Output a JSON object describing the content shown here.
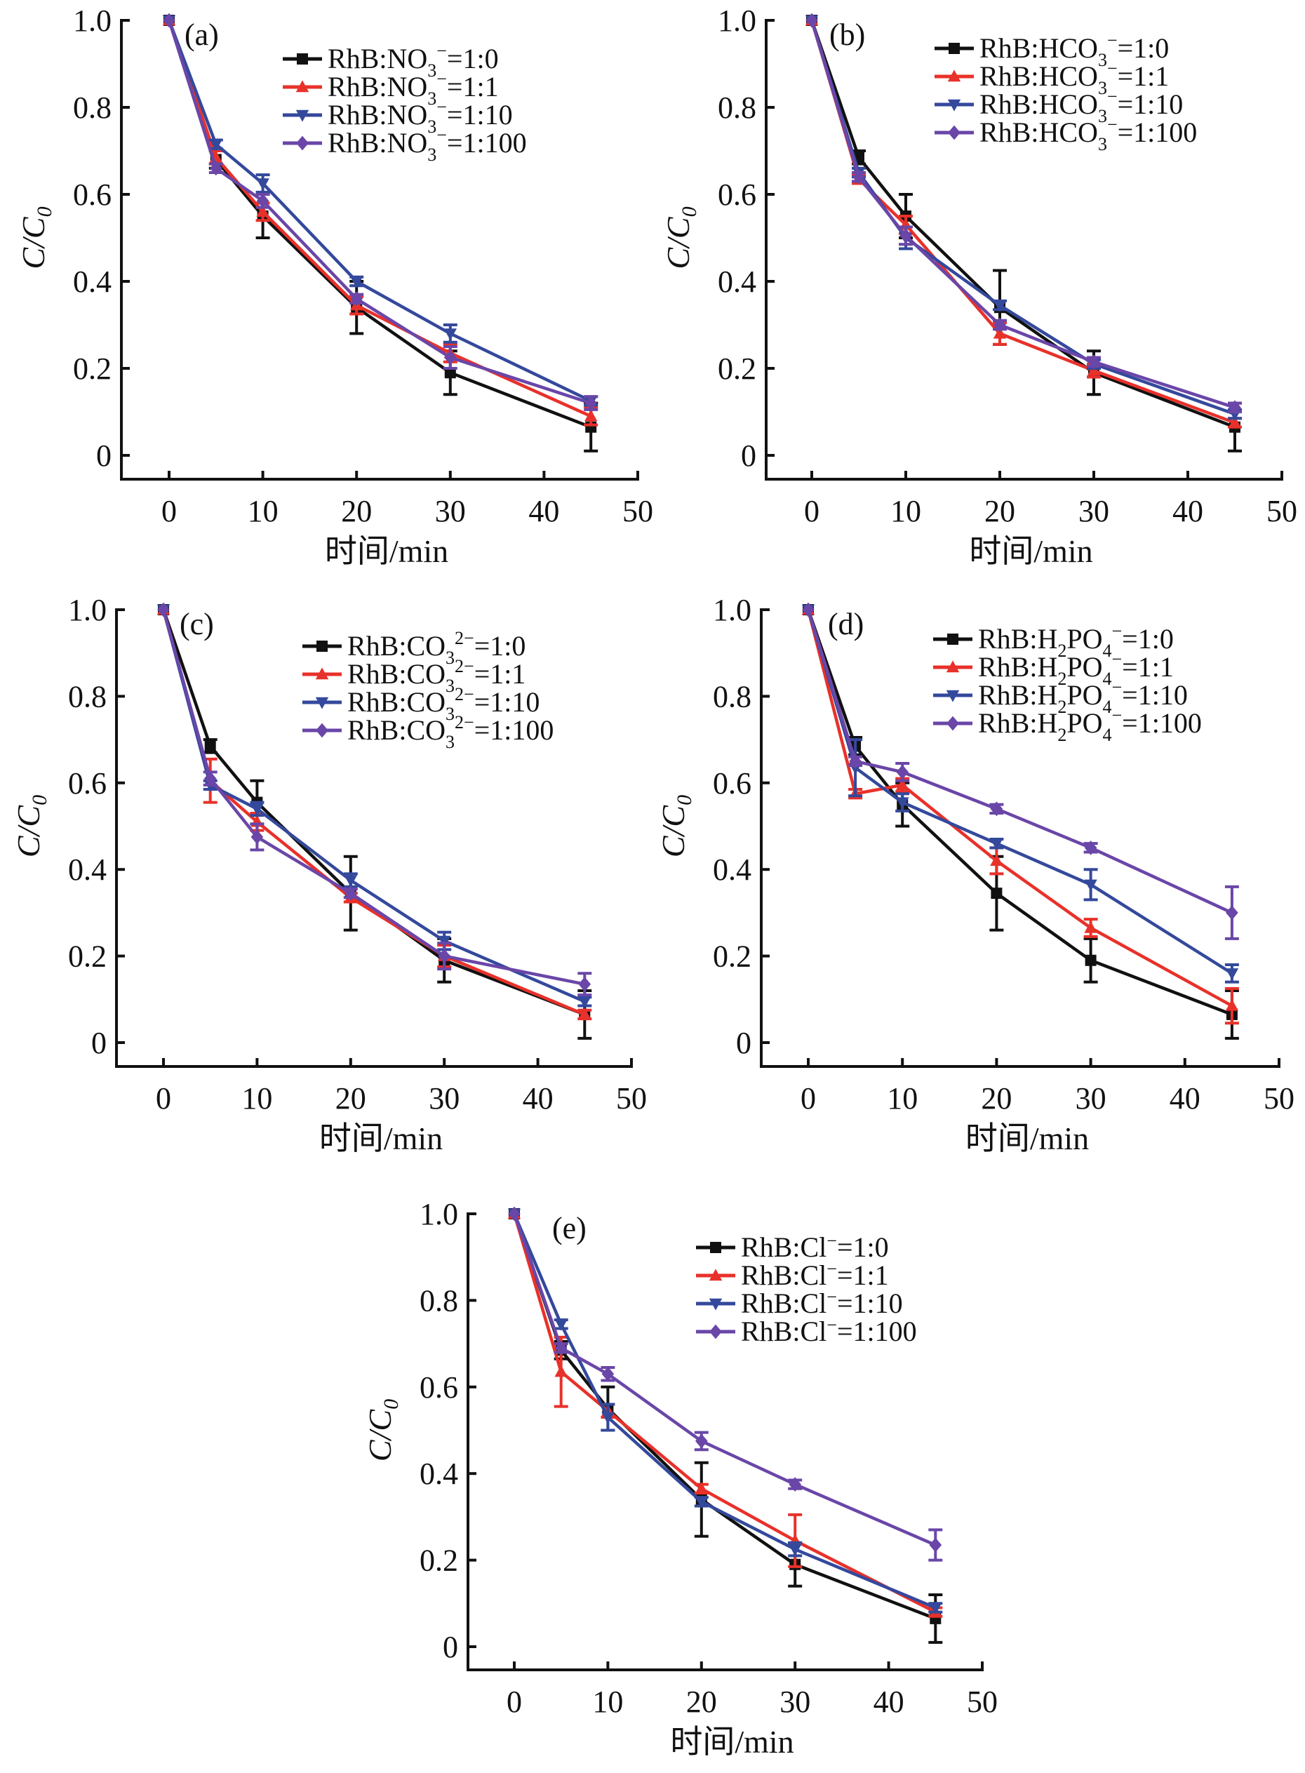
{
  "figure": {
    "series_colors": {
      "black": "#111111",
      "red": "#e8312a",
      "blue": "#34499c",
      "purple": "#6a46a8"
    },
    "marker_shapes": [
      "square",
      "triangle-up",
      "triangle-down",
      "diamond"
    ]
  },
  "chart_data": [
    {
      "id": "a",
      "type": "line",
      "panel_label": "(a)",
      "xlabel": "时间/min",
      "ylabel": "C/C0",
      "ylabel_main": "C/C",
      "ylabel_sub": "0",
      "xlim": [
        -8.5,
        50
      ],
      "ylim": [
        -0.09,
        1.0
      ],
      "xticks": [
        0,
        10,
        20,
        30,
        40,
        50
      ],
      "xtick_labels": [
        "0",
        "10",
        "20",
        "30",
        "40",
        "50"
      ],
      "yticks": [
        0,
        0.2,
        0.4,
        0.6,
        0.8,
        1.0
      ],
      "ytick_labels": [
        "0",
        "0.2",
        "0.4",
        "0.6",
        "0.8",
        "1.0"
      ],
      "legend_position": "top-right",
      "x": [
        0,
        5,
        10,
        20,
        30,
        45
      ],
      "series": [
        {
          "name": "RhB:NO3−=1:0",
          "legend": {
            "pre": "RhB:NO",
            "sub": "3",
            "sup": "−",
            "post": "=1:0"
          },
          "color": "black",
          "marker": "square",
          "values": [
            1.0,
            0.68,
            0.55,
            0.34,
            0.19,
            0.065
          ],
          "errors": [
            0.0,
            0.02,
            0.05,
            0.06,
            0.05,
            0.055
          ]
        },
        {
          "name": "RhB:NO3−=1:1",
          "legend": {
            "pre": "RhB:NO",
            "sub": "3",
            "sup": "−",
            "post": "=1:1"
          },
          "color": "red",
          "marker": "triangle-up",
          "values": [
            1.0,
            0.685,
            0.56,
            0.345,
            0.235,
            0.09
          ],
          "errors": [
            0.0,
            0.015,
            0.02,
            0.02,
            0.02,
            0.02
          ]
        },
        {
          "name": "RhB:NO3−=1:10",
          "legend": {
            "pre": "RhB:NO",
            "sub": "3",
            "sup": "−",
            "post": "=1:10"
          },
          "color": "blue",
          "marker": "triangle-down",
          "values": [
            1.0,
            0.715,
            0.625,
            0.4,
            0.28,
            0.125
          ],
          "errors": [
            0.0,
            0.01,
            0.02,
            0.01,
            0.02,
            0.01
          ]
        },
        {
          "name": "RhB:NO3−=1:100",
          "legend": {
            "pre": "RhB:NO",
            "sub": "3",
            "sup": "−",
            "post": "=1:100"
          },
          "color": "purple",
          "marker": "diamond",
          "values": [
            1.0,
            0.66,
            0.585,
            0.36,
            0.225,
            0.12
          ],
          "errors": [
            0.0,
            0.01,
            0.015,
            0.01,
            0.025,
            0.015
          ]
        }
      ]
    },
    {
      "id": "b",
      "type": "line",
      "panel_label": "(b)",
      "xlabel": "时间/min",
      "ylabel": "C/C0",
      "ylabel_main": "C/C",
      "ylabel_sub": "0",
      "xlim": [
        -8.5,
        50
      ],
      "ylim": [
        -0.09,
        1.0
      ],
      "xticks": [
        0,
        10,
        20,
        30,
        40,
        50
      ],
      "xtick_labels": [
        "0",
        "10",
        "20",
        "30",
        "40",
        "50"
      ],
      "yticks": [
        0,
        0.2,
        0.4,
        0.6,
        0.8,
        1.0
      ],
      "ytick_labels": [
        "0",
        "0.2",
        "0.4",
        "0.6",
        "0.8",
        "1.0"
      ],
      "legend_position": "top-right",
      "x": [
        0,
        5,
        10,
        20,
        30,
        45
      ],
      "series": [
        {
          "name": "RhB:HCO3−=1:0",
          "legend": {
            "pre": "RhB:HCO",
            "sub": "3",
            "sup": "−",
            "post": "=1:0"
          },
          "color": "black",
          "marker": "square",
          "values": [
            1.0,
            0.685,
            0.55,
            0.34,
            0.19,
            0.065
          ],
          "errors": [
            0.0,
            0.015,
            0.05,
            0.085,
            0.05,
            0.055
          ]
        },
        {
          "name": "RhB:HCO3−=1:1",
          "legend": {
            "pre": "RhB:HCO",
            "sub": "3",
            "sup": "−",
            "post": "=1:1"
          },
          "color": "red",
          "marker": "triangle-up",
          "values": [
            1.0,
            0.635,
            0.53,
            0.28,
            0.195,
            0.075
          ],
          "errors": [
            0.0,
            0.01,
            0.02,
            0.025,
            0.015,
            0.01
          ]
        },
        {
          "name": "RhB:HCO3−=1:10",
          "legend": {
            "pre": "RhB:HCO",
            "sub": "3",
            "sup": "−",
            "post": "=1:10"
          },
          "color": "blue",
          "marker": "triangle-down",
          "values": [
            1.0,
            0.65,
            0.5,
            0.345,
            0.21,
            0.095
          ],
          "errors": [
            0.0,
            0.01,
            0.025,
            0.01,
            0.01,
            0.01
          ]
        },
        {
          "name": "RhB:HCO3−=1:100",
          "legend": {
            "pre": "RhB:HCO",
            "sub": "3",
            "sup": "−",
            "post": "=1:100"
          },
          "color": "purple",
          "marker": "diamond",
          "values": [
            1.0,
            0.64,
            0.505,
            0.3,
            0.215,
            0.11
          ],
          "errors": [
            0.0,
            0.01,
            0.02,
            0.01,
            0.01,
            0.01
          ]
        }
      ]
    },
    {
      "id": "c",
      "type": "line",
      "panel_label": "(c)",
      "xlabel": "时间/min",
      "ylabel": "C/C0",
      "ylabel_main": "C/C",
      "ylabel_sub": "0",
      "xlim": [
        -8.5,
        50
      ],
      "ylim": [
        -0.09,
        1.0
      ],
      "xticks": [
        0,
        10,
        20,
        30,
        40,
        50
      ],
      "xtick_labels": [
        "0",
        "10",
        "20",
        "30",
        "40",
        "50"
      ],
      "yticks": [
        0,
        0.2,
        0.4,
        0.6,
        0.8,
        1.0
      ],
      "ytick_labels": [
        "0",
        "0.2",
        "0.4",
        "0.6",
        "0.8",
        "1.0"
      ],
      "legend_position": "top-right",
      "x": [
        0,
        5,
        10,
        20,
        30,
        45
      ],
      "series": [
        {
          "name": "RhB:CO3 2−=1:0",
          "legend": {
            "pre": "RhB:CO",
            "sub": "3",
            "sup": "2−",
            "post": "=1:0"
          },
          "color": "black",
          "marker": "square",
          "values": [
            1.0,
            0.685,
            0.555,
            0.345,
            0.19,
            0.065
          ],
          "errors": [
            0.0,
            0.015,
            0.05,
            0.085,
            0.05,
            0.055
          ]
        },
        {
          "name": "RhB:CO3 2−=1:1",
          "legend": {
            "pre": "RhB:CO",
            "sub": "3",
            "sup": "2−",
            "post": "=1:1"
          },
          "color": "red",
          "marker": "triangle-up",
          "values": [
            1.0,
            0.605,
            0.51,
            0.335,
            0.2,
            0.065
          ],
          "errors": [
            0.0,
            0.05,
            0.02,
            0.01,
            0.025,
            0.01
          ]
        },
        {
          "name": "RhB:CO3 2−=1:10",
          "legend": {
            "pre": "RhB:CO",
            "sub": "3",
            "sup": "2−",
            "post": "=1:10"
          },
          "color": "blue",
          "marker": "triangle-down",
          "values": [
            1.0,
            0.595,
            0.54,
            0.375,
            0.235,
            0.095
          ],
          "errors": [
            0.0,
            0.01,
            0.015,
            0.015,
            0.02,
            0.01
          ]
        },
        {
          "name": "RhB:CO3 2−=1:100",
          "legend": {
            "pre": "RhB:CO",
            "sub": "3",
            "sup": "2−",
            "post": "=1:100"
          },
          "color": "purple",
          "marker": "diamond",
          "values": [
            1.0,
            0.61,
            0.475,
            0.345,
            0.2,
            0.135
          ],
          "errors": [
            0.0,
            0.015,
            0.03,
            0.01,
            0.03,
            0.025
          ]
        }
      ]
    },
    {
      "id": "d",
      "type": "line",
      "panel_label": "(d)",
      "xlabel": "时间/min",
      "ylabel": "C/C0",
      "ylabel_main": "C/C",
      "ylabel_sub": "0",
      "xlim": [
        -8.5,
        50
      ],
      "ylim": [
        -0.09,
        1.0
      ],
      "xticks": [
        0,
        10,
        20,
        30,
        40,
        50
      ],
      "xtick_labels": [
        "0",
        "10",
        "20",
        "30",
        "40",
        "50"
      ],
      "yticks": [
        0,
        0.2,
        0.4,
        0.6,
        0.8,
        1.0
      ],
      "ytick_labels": [
        "0",
        "0.2",
        "0.4",
        "0.6",
        "0.8",
        "1.0"
      ],
      "legend_position": "top-right",
      "x": [
        0,
        5,
        10,
        20,
        30,
        45
      ],
      "series": [
        {
          "name": "RhB:H2PO4−=1:0",
          "legend": {
            "pre": "RhB:H",
            "sub": "2",
            "mid": "PO",
            "sub2": "4",
            "sup": "−",
            "post": "=1:0"
          },
          "color": "black",
          "marker": "square",
          "values": [
            1.0,
            0.685,
            0.55,
            0.345,
            0.19,
            0.065
          ],
          "errors": [
            0.0,
            0.02,
            0.05,
            0.085,
            0.05,
            0.055
          ]
        },
        {
          "name": "RhB:H2PO4−=1:1",
          "legend": {
            "pre": "RhB:H",
            "sub": "2",
            "mid": "PO",
            "sub2": "4",
            "sup": "−",
            "post": "=1:1"
          },
          "color": "red",
          "marker": "triangle-up",
          "values": [
            1.0,
            0.575,
            0.595,
            0.42,
            0.265,
            0.085
          ],
          "errors": [
            0.0,
            0.01,
            0.015,
            0.03,
            0.02,
            0.04
          ]
        },
        {
          "name": "RhB:H2PO4−=1:10",
          "legend": {
            "pre": "RhB:H",
            "sub": "2",
            "mid": "PO",
            "sub2": "4",
            "sup": "−",
            "post": "=1:10"
          },
          "color": "blue",
          "marker": "triangle-down",
          "values": [
            1.0,
            0.635,
            0.555,
            0.46,
            0.365,
            0.16
          ],
          "errors": [
            0.0,
            0.065,
            0.02,
            0.01,
            0.035,
            0.02
          ]
        },
        {
          "name": "RhB:H2PO4−=1:100",
          "legend": {
            "pre": "RhB:H",
            "sub": "2",
            "mid": "PO",
            "sub2": "4",
            "sup": "−",
            "post": "=1:100"
          },
          "color": "purple",
          "marker": "diamond",
          "values": [
            1.0,
            0.65,
            0.625,
            0.54,
            0.45,
            0.3
          ],
          "errors": [
            0.0,
            0.01,
            0.02,
            0.01,
            0.01,
            0.06
          ]
        }
      ]
    },
    {
      "id": "e",
      "type": "line",
      "panel_label": "(e)",
      "xlabel": "时间/min",
      "ylabel": "C/C0",
      "ylabel_main": "C/C",
      "ylabel_sub": "0",
      "xlim": [
        -8.5,
        50
      ],
      "ylim": [
        -0.09,
        1.0
      ],
      "xticks": [
        0,
        10,
        20,
        30,
        40,
        50
      ],
      "xtick_labels": [
        "0",
        "10",
        "20",
        "30",
        "40",
        "50"
      ],
      "yticks": [
        0,
        0.2,
        0.4,
        0.6,
        0.8,
        1.0
      ],
      "ytick_labels": [
        "0",
        "0.2",
        "0.4",
        "0.6",
        "0.8",
        "1.0"
      ],
      "legend_position": "top-right",
      "x": [
        0,
        5,
        10,
        20,
        30,
        45
      ],
      "series": [
        {
          "name": "RhB:Cl−=1:0",
          "legend": {
            "pre": "RhB:Cl",
            "sup": "−",
            "post": "=1:0"
          },
          "color": "black",
          "marker": "square",
          "values": [
            1.0,
            0.685,
            0.55,
            0.34,
            0.19,
            0.065
          ],
          "errors": [
            0.0,
            0.02,
            0.05,
            0.085,
            0.05,
            0.055
          ]
        },
        {
          "name": "RhB:Cl−=1:1",
          "legend": {
            "pre": "RhB:Cl",
            "sup": "−",
            "post": "=1:1"
          },
          "color": "red",
          "marker": "triangle-up",
          "values": [
            1.0,
            0.635,
            0.545,
            0.365,
            0.245,
            0.08
          ],
          "errors": [
            0.0,
            0.08,
            0.015,
            0.01,
            0.06,
            0.01
          ]
        },
        {
          "name": "RhB:Cl−=1:10",
          "legend": {
            "pre": "RhB:Cl",
            "sup": "−",
            "post": "=1:10"
          },
          "color": "blue",
          "marker": "triangle-down",
          "values": [
            1.0,
            0.745,
            0.53,
            0.335,
            0.225,
            0.09
          ],
          "errors": [
            0.0,
            0.01,
            0.03,
            0.01,
            0.015,
            0.01
          ]
        },
        {
          "name": "RhB:Cl−=1:100",
          "legend": {
            "pre": "RhB:Cl",
            "sup": "−",
            "post": "=1:100"
          },
          "color": "purple",
          "marker": "diamond",
          "values": [
            1.0,
            0.69,
            0.63,
            0.475,
            0.375,
            0.235
          ],
          "errors": [
            0.0,
            0.01,
            0.015,
            0.02,
            0.01,
            0.035
          ]
        }
      ]
    }
  ]
}
